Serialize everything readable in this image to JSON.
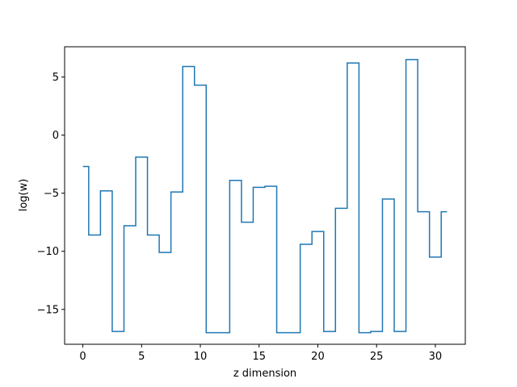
{
  "chart_data": {
    "type": "line",
    "drawstyle": "steps-mid",
    "title": "",
    "xlabel": "z dimension",
    "ylabel": "log(w)",
    "xlim": [
      -1.55,
      32.55
    ],
    "ylim": [
      -18.0,
      7.6
    ],
    "xticks": [
      0,
      5,
      10,
      15,
      20,
      25,
      30
    ],
    "yticks": [
      -15,
      -10,
      -5,
      0,
      5
    ],
    "ytick_labels": [
      "−15",
      "−10",
      "−5",
      "0",
      "5"
    ],
    "grid": false,
    "color": "#1f77b4",
    "x": [
      0,
      1,
      2,
      3,
      4,
      5,
      6,
      7,
      8,
      9,
      10,
      11,
      12,
      13,
      14,
      15,
      16,
      17,
      18,
      19,
      20,
      21,
      22,
      23,
      24,
      25,
      26,
      27,
      28,
      29,
      30,
      31
    ],
    "y": [
      -2.7,
      -8.6,
      -4.8,
      -16.9,
      -7.8,
      -1.9,
      -8.6,
      -10.1,
      -4.9,
      5.9,
      4.3,
      -17.0,
      -17.0,
      -3.9,
      -7.5,
      -4.5,
      -4.4,
      -17.0,
      -17.0,
      -9.4,
      -8.3,
      -16.9,
      -6.3,
      6.2,
      -17.0,
      -16.9,
      -5.5,
      -16.9,
      6.5,
      -6.6,
      -10.5,
      -6.6
    ]
  }
}
